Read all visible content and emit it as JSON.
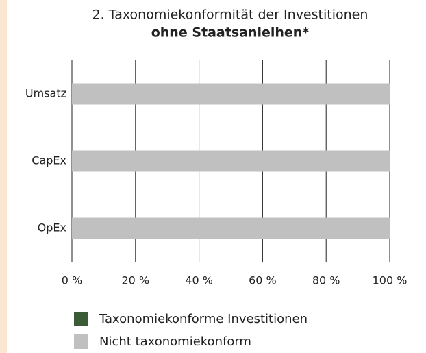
{
  "chart_data": {
    "type": "stacked-bar-horizontal",
    "title": "2. Taxonomiekonformität der Investitionen",
    "subtitle": "ohne Staatsanleihen*",
    "categories": [
      "Umsatz",
      "CapEx",
      "OpEx"
    ],
    "series": [
      {
        "name": "Taxonomiekonforme Investitionen",
        "color": "#3b5a36",
        "values": [
          0,
          0,
          0
        ]
      },
      {
        "name": "Nicht taxonomiekonform",
        "color": "#c0c0c0",
        "values": [
          100,
          100,
          100
        ]
      }
    ],
    "xlim": [
      0,
      100
    ],
    "xticks": [
      {
        "value": 0,
        "label": "0 %"
      },
      {
        "value": 20,
        "label": "20 %"
      },
      {
        "value": 40,
        "label": "40 %"
      },
      {
        "value": 60,
        "label": "60 %"
      },
      {
        "value": 80,
        "label": "80 %"
      },
      {
        "value": 100,
        "label": "100 %"
      }
    ],
    "grid": true
  }
}
